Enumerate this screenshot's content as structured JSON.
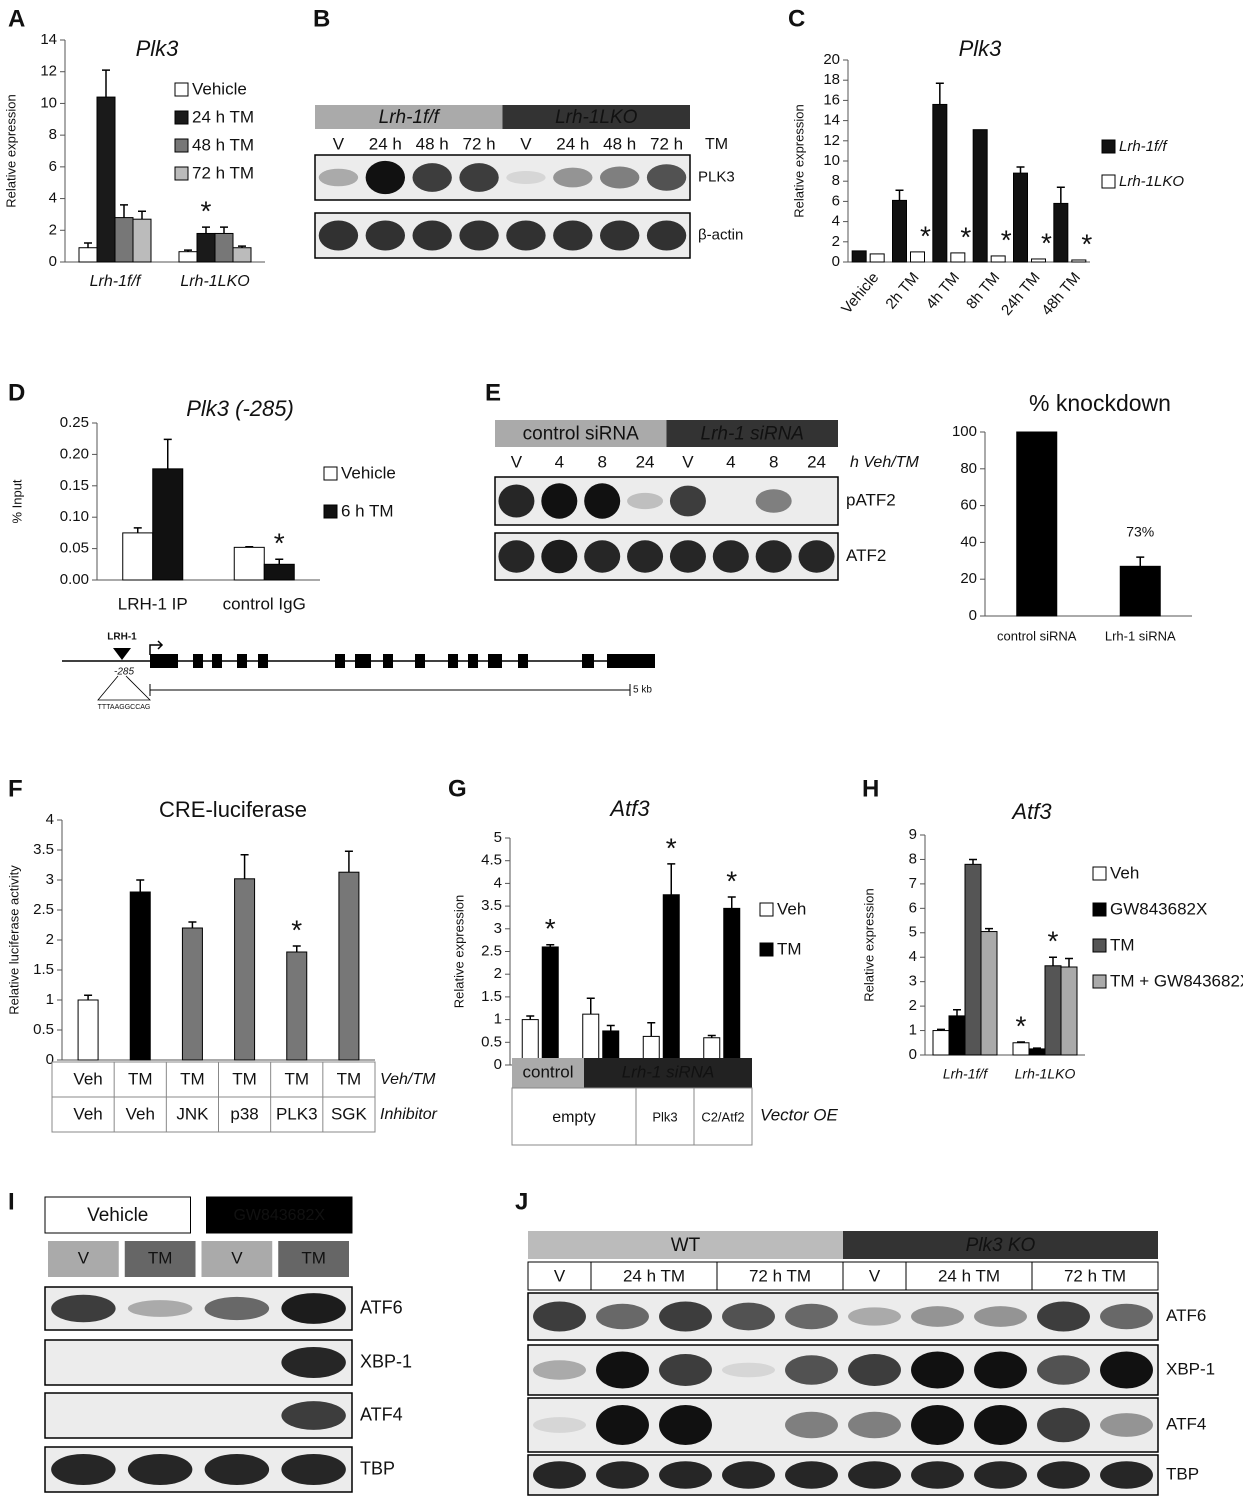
{
  "panel_labels": [
    "A",
    "B",
    "C",
    "D",
    "E",
    "F",
    "G",
    "H",
    "I",
    "J"
  ],
  "chart_data": [
    {
      "type": "bar",
      "title": "Plk3",
      "ylabel": "Relative expression",
      "categories": [
        "Lrh-1f/f",
        "Lrh-1LKO"
      ],
      "series": [
        {
          "name": "Vehicle",
          "color": "#ffffff",
          "values": [
            0.9,
            0.65
          ],
          "errors": [
            0.3,
            0.1
          ]
        },
        {
          "name": "24 h TM",
          "color": "#1a1a1a",
          "values": [
            10.4,
            1.8
          ],
          "errors": [
            1.7,
            0.4
          ],
          "markers": [
            null,
            "*"
          ]
        },
        {
          "name": "48 h TM",
          "color": "#777777",
          "values": [
            2.8,
            1.8
          ],
          "errors": [
            0.8,
            0.4
          ]
        },
        {
          "name": "72 h TM",
          "color": "#bbbbbb",
          "values": [
            2.7,
            0.9
          ],
          "errors": [
            0.5,
            0.1
          ]
        }
      ],
      "ylim": [
        0,
        14
      ],
      "yticks": [
        0,
        2,
        4,
        6,
        8,
        10,
        12,
        14
      ],
      "legend": "right"
    },
    {
      "type": "bar",
      "title": "Plk3",
      "ylabel": "Relative expression",
      "categories": [
        "Vehicle",
        "2h TM",
        "4h TM",
        "8h TM",
        "24h TM",
        "48h TM"
      ],
      "series": [
        {
          "name": "Lrh-1f/f",
          "color": "#111111",
          "values": [
            1.1,
            6.1,
            15.6,
            13.1,
            8.8,
            5.8
          ],
          "errors": [
            0,
            1,
            2.1,
            0,
            0.6,
            1.6
          ]
        },
        {
          "name": "Lrh-1LKO",
          "color": "#ffffff",
          "values": [
            0.8,
            1.0,
            0.9,
            0.6,
            0.3,
            0.2
          ],
          "errors": [
            0,
            0,
            0,
            0,
            0,
            0
          ],
          "markers": [
            null,
            "*",
            "*",
            "*",
            "*",
            "*"
          ]
        }
      ],
      "ylim": [
        0,
        20
      ],
      "yticks": [
        0,
        2,
        4,
        6,
        8,
        10,
        12,
        14,
        16,
        18,
        20
      ],
      "legend": "right"
    },
    {
      "type": "bar",
      "title": "Plk3 (-285)",
      "ylabel": "% Input",
      "categories": [
        "LRH-1 IP",
        "control IgG"
      ],
      "series": [
        {
          "name": "Vehicle",
          "color": "#ffffff",
          "values": [
            0.075,
            0.052
          ],
          "errors": [
            0.008,
            0.001
          ]
        },
        {
          "name": "6 h TM",
          "color": "#111111",
          "values": [
            0.177,
            0.025
          ],
          "errors": [
            0.047,
            0.008
          ],
          "markers": [
            null,
            "*"
          ]
        }
      ],
      "ylim": [
        0,
        0.25
      ],
      "yticks": [
        {
          "value": 0,
          "label": "0.00"
        },
        {
          "value": 0.05,
          "label": "0.05"
        },
        {
          "value": 0.1,
          "label": "0.10"
        },
        {
          "value": 0.15,
          "label": "0.15"
        },
        {
          "value": 0.2,
          "label": "0.20"
        },
        {
          "value": 0.25,
          "label": "0.25"
        }
      ],
      "legend": "right"
    },
    {
      "type": "bar",
      "title": "% knockdown",
      "categories": [
        "control siRNA",
        "Lrh-1 siRNA"
      ],
      "series": [
        {
          "color": "#000000",
          "values": [
            100,
            27
          ],
          "errors": [
            0,
            5
          ]
        }
      ],
      "note": "73%",
      "ylim": [
        0,
        100
      ],
      "yticks": [
        0,
        20,
        40,
        60,
        80,
        100
      ]
    },
    {
      "type": "bar",
      "title": "CRE-luciferase",
      "ylabel": "Relative luciferase activity",
      "categories": [
        null,
        null,
        null,
        null,
        null,
        null
      ],
      "series": [
        {
          "colors": [
            "#ffffff",
            "#000000",
            "#777777",
            "#777777",
            "#777777",
            "#777777"
          ],
          "values": [
            1,
            2.8,
            2.2,
            3.02,
            1.8,
            3.13
          ],
          "errors": [
            0.08,
            0.2,
            0.1,
            0.4,
            0.1,
            0.35
          ],
          "markers": [
            null,
            null,
            null,
            null,
            "*",
            null
          ]
        }
      ],
      "ylim": [
        0,
        4
      ],
      "yticks": [
        0,
        0.5,
        1,
        1.5,
        2,
        2.5,
        3,
        3.5,
        4
      ],
      "table": [
        {
          "label": "Veh/TM",
          "cells": [
            "Veh",
            "TM",
            "TM",
            "TM",
            "TM",
            "TM"
          ]
        },
        {
          "label": "Inhibitor",
          "cells": [
            "Veh",
            "Veh",
            "JNK",
            "p38",
            "PLK3",
            "SGK"
          ]
        }
      ]
    },
    {
      "type": "bar",
      "title": "Atf3",
      "ylabel": "Relative expression",
      "categories": [
        null,
        null,
        null,
        null
      ],
      "series": [
        {
          "name": "Veh",
          "color": "#ffffff",
          "values": [
            1.0,
            1.12,
            0.63,
            0.6
          ],
          "errors": [
            0.08,
            0.35,
            0.3,
            0.05
          ]
        },
        {
          "name": "TM",
          "color": "#000000",
          "values": [
            2.6,
            0.75,
            3.75,
            3.45
          ],
          "errors": [
            0.05,
            0.12,
            0.68,
            0.25
          ],
          "markers": [
            "*",
            null,
            "*",
            "*"
          ]
        }
      ],
      "ylim": [
        0,
        5
      ],
      "yticks": [
        0,
        0.5,
        1,
        1.5,
        2,
        2.5,
        3,
        3.5,
        4,
        4.5,
        5
      ],
      "legend": "right",
      "table": {
        "sirna": [
          "control",
          "Lrh-1 siRNA"
        ],
        "vector": [
          "empty",
          "Plk3",
          "C2/Atf2"
        ],
        "vector_label": "Vector OE"
      }
    },
    {
      "type": "bar",
      "title": "Atf3",
      "ylabel": "Relative expression",
      "categories": [
        "Lrh-1f/f",
        "Lrh-1LKO"
      ],
      "series": [
        {
          "name": "Veh",
          "color": "#ffffff",
          "values": [
            1.0,
            0.5
          ],
          "errors": [
            0.05,
            0.03
          ],
          "markers": [
            null,
            "*"
          ]
        },
        {
          "name": "GW843682X",
          "color": "#000000",
          "values": [
            1.6,
            0.25
          ],
          "errors": [
            0.25,
            0.03
          ]
        },
        {
          "name": "TM",
          "color": "#555555",
          "values": [
            7.8,
            3.65
          ],
          "errors": [
            0.2,
            0.35
          ],
          "markers": [
            null,
            "*"
          ]
        },
        {
          "name": "TM + GW843682X",
          "color": "#aaaaaa",
          "values": [
            5.05,
            3.6
          ],
          "errors": [
            0.12,
            0.35
          ]
        }
      ],
      "ylim": [
        0,
        9
      ],
      "yticks": [
        0,
        1,
        2,
        3,
        4,
        5,
        6,
        7,
        8,
        9
      ],
      "legend": "right"
    }
  ],
  "blots": {
    "B": {
      "headers": [
        "Lrh-1f/f",
        "Lrh-1LKO"
      ],
      "lanes": [
        "V",
        "24 h",
        "48 h",
        "72 h",
        "V",
        "24 h",
        "48 h",
        "72 h"
      ],
      "lane_label": "TM",
      "rows": [
        "PLK3",
        "β-actin"
      ]
    },
    "E": {
      "headers": [
        "control siRNA",
        "Lrh-1 siRNA"
      ],
      "lanes": [
        "V",
        "4",
        "8",
        "24",
        "V",
        "4",
        "8",
        "24"
      ],
      "lane_label": "h Veh/TM",
      "rows": [
        "pATF2",
        "ATF2"
      ]
    },
    "I": {
      "headers": [
        "Vehicle",
        "GW843682X"
      ],
      "lanes": [
        "V",
        "TM",
        "V",
        "TM"
      ],
      "rows": [
        "ATF6",
        "XBP-1",
        "ATF4",
        "TBP"
      ]
    },
    "J": {
      "headers": [
        "WT",
        "Plk3 KO"
      ],
      "lanes": [
        "V",
        "24 h TM",
        "72 h TM",
        "V",
        "24 h TM",
        "72 h TM"
      ],
      "rows": [
        "ATF6",
        "XBP-1",
        "ATF4",
        "TBP"
      ]
    }
  },
  "gene_diagram": {
    "factor": "LRH-1",
    "site": "-285",
    "sequence": "TTTAAGGCCAG",
    "scale": "5 kb"
  }
}
